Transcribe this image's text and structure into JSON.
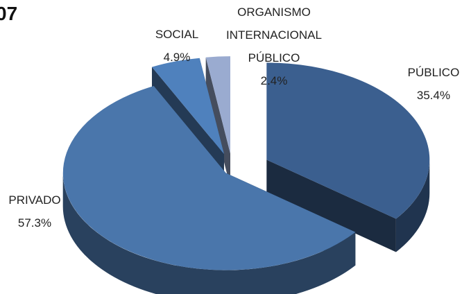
{
  "chart_data": {
    "type": "pie",
    "title": "07",
    "categories": [
      "PÚBLICO",
      "PRIVADO",
      "SOCIAL",
      "ORGANISMO INTERNACIONAL PÚBLICO"
    ],
    "values": [
      35.4,
      57.3,
      4.9,
      2.4
    ],
    "value_labels": [
      "35.4%",
      "57.3%",
      "4.9%",
      "2.4%"
    ],
    "colors": [
      "#3b5f8f",
      "#4a76ab",
      "#4f81bd",
      "#9aabd0"
    ]
  }
}
